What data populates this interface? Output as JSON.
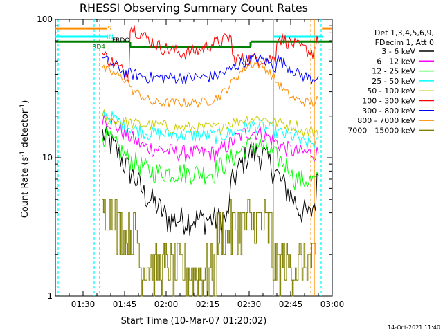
{
  "chart_data": {
    "type": "line",
    "title": "RHESSI Observing Summary Count Rates",
    "xlabel": "Start Time (10-Mar-07 01:20:02)",
    "ylabel_main": "Count Rate (s",
    "ylabel_sup1": "-1",
    "ylabel_mid": " detector",
    "ylabel_sup2": "-1",
    "ylabel_end": ")",
    "y_scale": "log",
    "ylim": [
      1,
      100
    ],
    "xlim_minutes": [
      0,
      100
    ],
    "x_ticks": [
      {
        "t": 10,
        "label": "01:30"
      },
      {
        "t": 25,
        "label": "01:45"
      },
      {
        "t": 40,
        "label": "02:00"
      },
      {
        "t": 55,
        "label": "02:15"
      },
      {
        "t": 70,
        "label": "02:30"
      },
      {
        "t": 85,
        "label": "02:45"
      },
      {
        "t": 100,
        "label": "03:00"
      }
    ],
    "y_ticks": [
      {
        "v": 1,
        "label": "1"
      },
      {
        "v": 10,
        "label": "10"
      },
      {
        "v": 100,
        "label": "100"
      }
    ],
    "legend_header": [
      "Det 1,3,4,5,6,9,",
      "FDecim 1, Att 0"
    ],
    "legend_placement": "right",
    "series": [
      {
        "name": "3 - 6 keV",
        "color": "#000000"
      },
      {
        "name": "6 - 12 keV",
        "color": "#ff00ff"
      },
      {
        "name": "12 - 25 keV",
        "color": "#00ff00"
      },
      {
        "name": "25 - 50 keV",
        "color": "#00ffff"
      },
      {
        "name": "50 - 100 keV",
        "color": "#cccc00"
      },
      {
        "name": "100 - 300 keV",
        "color": "#ff0000"
      },
      {
        "name": "300 - 800 keV",
        "color": "#0000ff"
      },
      {
        "name": "800 - 7000 keV",
        "color": "#ff8c00"
      },
      {
        "name": "7000 - 15000 keV",
        "color": "#808000"
      }
    ],
    "flag_labels": {
      "saa": "S",
      "night": "IN",
      "decimation": "FRDO",
      "rd4": "RD4"
    },
    "flag_colors": {
      "saa": "#ff8c00",
      "night": "#00ffff",
      "rd4": "#008000"
    },
    "footer_date": "14-Oct-2021 11:40"
  }
}
